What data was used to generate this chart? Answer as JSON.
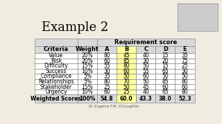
{
  "title": "Example 2",
  "header_main": "Requirement score",
  "col_headers": [
    "Criteria",
    "Weight",
    "A",
    "B",
    "C",
    "D",
    "E"
  ],
  "rows": [
    [
      "Value",
      "20%",
      "80",
      "45",
      "40",
      "15",
      "35"
    ],
    [
      "Risk",
      "20%",
      "60",
      "85",
      "30",
      "20",
      "75"
    ],
    [
      "Difficulty",
      "15%",
      "55",
      "80",
      "50",
      "15",
      "25"
    ],
    [
      "Success",
      "10%",
      "30",
      "60",
      "55",
      "65",
      "30"
    ],
    [
      "Compliance",
      "5%",
      "35",
      "50",
      "60",
      "50",
      "50"
    ],
    [
      "Relationships",
      "5%",
      "80",
      "70",
      "50",
      "85",
      "80"
    ],
    [
      "Stakeholder",
      "15%",
      "25",
      "50",
      "45",
      "60",
      "60"
    ],
    [
      "Urgency",
      "10%",
      "60",
      "25",
      "40",
      "65",
      "80"
    ]
  ],
  "footer": [
    "Weighted Scores",
    "100%",
    "54.8",
    "60.0",
    "43.3",
    "38.0",
    "52.3"
  ],
  "highlight_col": 3,
  "bg_color": "#f0ede0",
  "table_bg": "#ffffff",
  "header_bg": "#d9d9d9",
  "highlight_bg": "#ffff99",
  "footer_bg": "#d9d9d9",
  "border_color": "#888888",
  "title_color": "#000000",
  "subtitle": "Dr Eugene F.M. O'Loughlin"
}
